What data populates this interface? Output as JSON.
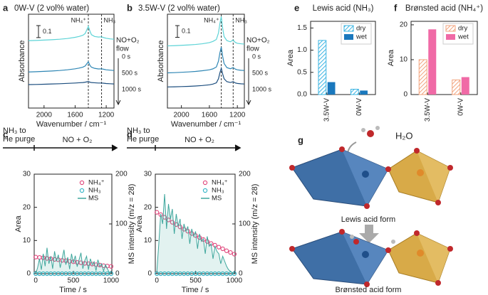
{
  "chart_data": [
    {
      "type": "line",
      "panel_label": "a",
      "title": "0W-V (2 vol% water)",
      "xlabel": "Wavenumber / cm⁻¹",
      "ylabel": "Absorbance",
      "xlim": [
        2200,
        1100
      ],
      "xticks": [
        2000,
        1600,
        1200
      ],
      "ylim": [
        0,
        0.78
      ],
      "scale_bar": 0.1,
      "flow_label": [
        "NO+O₂",
        "flow"
      ],
      "markers": [
        {
          "label": "NH₄⁺",
          "x": 1430
        },
        {
          "label": "NH₃",
          "x": 1260
        }
      ],
      "x": [
        2200,
        2100,
        2000,
        1900,
        1800,
        1700,
        1600,
        1550,
        1500,
        1470,
        1450,
        1430,
        1410,
        1390,
        1350,
        1300,
        1260,
        1230,
        1200,
        1150,
        1100
      ],
      "series": [
        {
          "name": "0 s",
          "color": "#5cd3d6",
          "values": [
            0.56,
            0.562,
            0.565,
            0.568,
            0.572,
            0.578,
            0.588,
            0.595,
            0.605,
            0.62,
            0.65,
            0.68,
            0.64,
            0.61,
            0.595,
            0.59,
            0.592,
            0.585,
            0.58,
            0.575,
            0.572
          ]
        },
        {
          "name": "500 s",
          "color": "#2e86b4",
          "values": [
            0.3,
            0.302,
            0.305,
            0.308,
            0.312,
            0.318,
            0.326,
            0.332,
            0.34,
            0.35,
            0.368,
            0.385,
            0.355,
            0.34,
            0.33,
            0.325,
            0.326,
            0.322,
            0.318,
            0.315,
            0.312
          ]
        },
        {
          "name": "1000 s",
          "color": "#1b4d7e",
          "values": [
            0.195,
            0.196,
            0.198,
            0.2,
            0.202,
            0.205,
            0.208,
            0.21,
            0.212,
            0.215,
            0.218,
            0.22,
            0.215,
            0.212,
            0.21,
            0.208,
            0.208,
            0.206,
            0.204,
            0.202,
            0.2
          ]
        }
      ]
    },
    {
      "type": "line",
      "panel_label": "b",
      "title": "3.5W-V (2 vol% water)",
      "xlabel": "Wavenumber / cm⁻¹",
      "ylabel": "Absorbance",
      "xlim": [
        2200,
        1100
      ],
      "xticks": [
        2000,
        1600,
        1200
      ],
      "ylim": [
        0,
        0.8
      ],
      "scale_bar": 0.1,
      "flow_label": [
        "NO+O₂",
        "flow"
      ],
      "markers": [
        {
          "label": "NH₄⁺",
          "x": 1430
        },
        {
          "label": "NH₃",
          "x": 1260
        }
      ],
      "x": [
        2200,
        2100,
        2000,
        1900,
        1800,
        1700,
        1600,
        1550,
        1500,
        1470,
        1450,
        1430,
        1410,
        1390,
        1350,
        1300,
        1260,
        1230,
        1200,
        1150,
        1100
      ],
      "series": [
        {
          "name": "0 s",
          "color": "#5cd3d6",
          "values": [
            0.53,
            0.532,
            0.535,
            0.538,
            0.542,
            0.548,
            0.558,
            0.568,
            0.585,
            0.64,
            0.72,
            0.78,
            0.68,
            0.61,
            0.575,
            0.565,
            0.58,
            0.56,
            0.552,
            0.548,
            0.545
          ]
        },
        {
          "name": "500 s",
          "color": "#2e86b4",
          "values": [
            0.3,
            0.302,
            0.305,
            0.308,
            0.312,
            0.318,
            0.326,
            0.334,
            0.35,
            0.4,
            0.47,
            0.52,
            0.44,
            0.38,
            0.345,
            0.335,
            0.345,
            0.332,
            0.326,
            0.322,
            0.32
          ]
        },
        {
          "name": "1000 s",
          "color": "#1b4d7e",
          "values": [
            0.18,
            0.181,
            0.183,
            0.185,
            0.188,
            0.192,
            0.198,
            0.204,
            0.215,
            0.25,
            0.3,
            0.34,
            0.29,
            0.25,
            0.225,
            0.218,
            0.225,
            0.214,
            0.21,
            0.207,
            0.205
          ]
        }
      ]
    },
    {
      "type": "bar",
      "panel_label": "e",
      "title": "Lewis acid (NH₃)",
      "ylabel": "Area",
      "categories": [
        "3.5W-V",
        "0W-V"
      ],
      "ylim": [
        0,
        1.65
      ],
      "yticks": [
        {
          "value": 0,
          "label": "0.0"
        },
        {
          "value": 0.5,
          "label": "0.5"
        },
        {
          "value": 1,
          "label": "1.0"
        },
        {
          "value": 1.5,
          "label": "1.5"
        }
      ],
      "legend": "upper right",
      "series": [
        {
          "name": "dry",
          "color": "#3bb4e2",
          "hatch": true,
          "values": [
            1.22,
            0.12
          ]
        },
        {
          "name": "wet",
          "color": "#1a78bd",
          "hatch": false,
          "values": [
            0.28,
            0.09
          ]
        }
      ]
    },
    {
      "type": "bar",
      "panel_label": "f",
      "title": "Brønsted acid (NH₄⁺)",
      "ylabel": "Area",
      "categories": [
        "3.5W-V",
        "0W-V"
      ],
      "ylim": [
        0,
        21
      ],
      "yticks": [
        0,
        10,
        20
      ],
      "legend": "upper right",
      "series": [
        {
          "name": "dry",
          "color": "#f2a37c",
          "hatch": true,
          "values": [
            10,
            4.2
          ]
        },
        {
          "name": "wet",
          "color": "#f06aa6",
          "hatch": false,
          "values": [
            18.7,
            5
          ]
        }
      ]
    },
    {
      "type": "scatter",
      "panel_label": "c",
      "purge_label": [
        "NH₃ to",
        "He purge"
      ],
      "flow_label": "NO + O₂",
      "xlabel": "Time / s",
      "ylabel": "Area",
      "y2label": "MS intensity (m/z = 28)",
      "xlim": [
        -20,
        1010
      ],
      "xticks": [
        0,
        500,
        1000
      ],
      "ylim": [
        0,
        30
      ],
      "yticks": [
        0,
        10,
        20,
        30
      ],
      "y2lim": [
        0,
        200
      ],
      "y2ticks": [
        0,
        100,
        200
      ],
      "legend": "upper right",
      "series": [
        {
          "name": "NH₄⁺",
          "color": "#e0457b",
          "x": [
            0,
            50,
            100,
            150,
            200,
            250,
            300,
            350,
            400,
            450,
            500,
            550,
            600,
            650,
            700,
            750,
            800,
            850,
            900,
            950,
            1000
          ],
          "values": [
            5,
            4.9,
            4.8,
            4.6,
            4.5,
            4.3,
            4.2,
            4,
            3.9,
            3.7,
            3.6,
            3.4,
            3.3,
            3.1,
            3,
            2.9,
            2.7,
            2.6,
            2.4,
            2.3,
            2.2
          ]
        },
        {
          "name": "NH₃",
          "color": "#2fb3c6",
          "x": [
            0,
            50,
            100,
            150,
            200,
            250,
            300,
            350,
            400,
            450,
            500,
            550,
            600,
            650,
            700,
            750,
            800,
            850,
            900,
            950,
            1000
          ],
          "values": [
            0,
            0,
            0,
            0,
            0,
            0,
            0,
            0,
            0,
            0,
            0,
            0,
            0,
            0,
            0,
            0,
            0,
            0,
            0,
            0,
            0
          ]
        },
        {
          "name": "MS",
          "color": "#3fa79d",
          "axis": "y2",
          "x": [
            0,
            25,
            50,
            75,
            100,
            125,
            150,
            175,
            200,
            225,
            250,
            275,
            300,
            325,
            350,
            375,
            400,
            425,
            450,
            475,
            500,
            525,
            550,
            575,
            600,
            625,
            650,
            675,
            700,
            725,
            750,
            775,
            800,
            825,
            850,
            875,
            900,
            925,
            950,
            975,
            1000
          ],
          "values": [
            0,
            12,
            30,
            8,
            40,
            15,
            52,
            20,
            35,
            10,
            45,
            25,
            38,
            12,
            30,
            48,
            18,
            33,
            9,
            40,
            22,
            36,
            14,
            28,
            42,
            10,
            26,
            35,
            8,
            30,
            18,
            24,
            6,
            28,
            15,
            20,
            5,
            18,
            10,
            3,
            0
          ]
        }
      ]
    },
    {
      "type": "scatter",
      "panel_label": "d",
      "purge_label": [
        "NH₃ to",
        "He purge"
      ],
      "flow_label": "NO + O₂",
      "xlabel": "Time / s",
      "ylabel": "Area",
      "y2label": "MS intensity (m/z = 28)",
      "xlim": [
        -20,
        1010
      ],
      "xticks": [
        0,
        500,
        1000
      ],
      "ylim": [
        0,
        30
      ],
      "yticks": [
        0,
        10,
        20,
        30
      ],
      "y2lim": [
        0,
        200
      ],
      "y2ticks": [
        0,
        100,
        200
      ],
      "legend": "upper right",
      "series": [
        {
          "name": "NH₄⁺",
          "color": "#e0457b",
          "x": [
            0,
            50,
            100,
            150,
            200,
            250,
            300,
            350,
            400,
            450,
            500,
            550,
            600,
            650,
            700,
            750,
            800,
            850,
            900,
            950,
            1000
          ],
          "values": [
            18.5,
            17.8,
            17,
            16.2,
            15.5,
            14.8,
            14.1,
            13.4,
            12.8,
            12.1,
            11.5,
            10.9,
            10.3,
            9.7,
            9.1,
            8.6,
            8,
            7.5,
            6.9,
            6.4,
            5.9
          ]
        },
        {
          "name": "NH₃",
          "color": "#2fb3c6",
          "x": [
            0,
            50,
            100,
            150,
            200,
            250,
            300,
            350,
            400,
            450,
            500,
            550,
            600,
            650,
            700,
            750,
            800,
            850,
            900,
            950,
            1000
          ],
          "values": [
            0,
            0,
            0,
            0,
            0,
            0,
            0,
            0,
            0,
            0,
            0,
            0,
            0,
            0,
            0,
            0,
            0,
            0,
            0,
            0,
            0
          ]
        },
        {
          "name": "MS",
          "color": "#3fa79d",
          "axis": "y2",
          "x": [
            0,
            25,
            50,
            75,
            100,
            125,
            150,
            175,
            200,
            225,
            250,
            275,
            300,
            325,
            350,
            375,
            400,
            425,
            450,
            475,
            500,
            525,
            550,
            575,
            600,
            625,
            650,
            675,
            700,
            725,
            750,
            775,
            800,
            825,
            850,
            875,
            900,
            925,
            950,
            975,
            1000
          ],
          "values": [
            5,
            60,
            120,
            100,
            160,
            90,
            140,
            110,
            130,
            80,
            120,
            95,
            110,
            70,
            100,
            85,
            95,
            60,
            90,
            75,
            85,
            50,
            80,
            65,
            70,
            40,
            75,
            55,
            60,
            30,
            55,
            45,
            40,
            20,
            35,
            25,
            15,
            8,
            5,
            2,
            0
          ]
        }
      ]
    }
  ],
  "diagram": {
    "label": "g",
    "water": "H₂O",
    "top_caption": "Lewis acid form",
    "bottom_caption": "Brønsted acid form"
  }
}
